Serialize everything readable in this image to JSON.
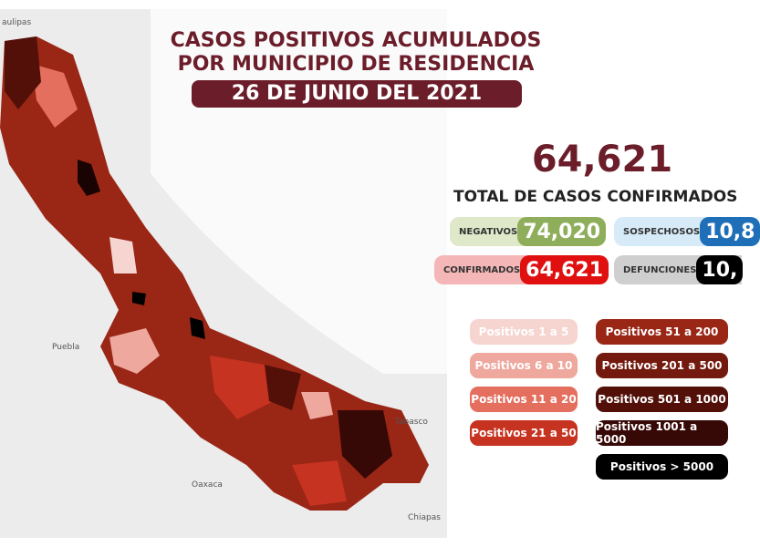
{
  "header": {
    "line1": "CASOS POSITIVOS ACUMULADOS",
    "line2": "POR MUNICIPIO DE RESIDENCIA",
    "date": "26 DE JUNIO DEL 2021"
  },
  "summary": {
    "total": "64,621",
    "total_label": "TOTAL DE CASOS CONFIRMADOS"
  },
  "stats": [
    {
      "label": "NEGATIVOS",
      "value": "74,020",
      "color": "#8fae5b",
      "bg": "#dfe9c9"
    },
    {
      "label": "SOSPECHOSOS",
      "value": "10,8",
      "color": "#1f6fb8",
      "bg": "#d6eaf8"
    },
    {
      "label": "CONFIRMADOS",
      "value": "64,621",
      "color": "#e01010",
      "bg": "#f4b6b6"
    },
    {
      "label": "DEFUNCIONES",
      "value": "10,",
      "color": "#000000",
      "bg": "#cfcfcf"
    }
  ],
  "legend": [
    {
      "label": "Positivos 1 a 5",
      "color": "#f6d4d0"
    },
    {
      "label": "Positivos 6 a 10",
      "color": "#eea89e"
    },
    {
      "label": "Positivos 11 a 20",
      "color": "#e46f5e"
    },
    {
      "label": "Positivos 21 a 50",
      "color": "#c63320"
    },
    {
      "label": "Positivos 51 a 200",
      "color": "#9a2616"
    },
    {
      "label": "Positivos 201 a 500",
      "color": "#74190e"
    },
    {
      "label": "Positivos 501 a 1000",
      "color": "#521009"
    },
    {
      "label": "Positivos 1001 a 5000",
      "color": "#360806"
    },
    {
      "label": "Positivos > 5000",
      "color": "#000000"
    }
  ],
  "map_labels": {
    "tamaulipas": "aulipas",
    "puebla": "Puebla",
    "oaxaca": "Oaxaca",
    "tabasco": "Tabasco",
    "chiapas": "Chiapas"
  }
}
